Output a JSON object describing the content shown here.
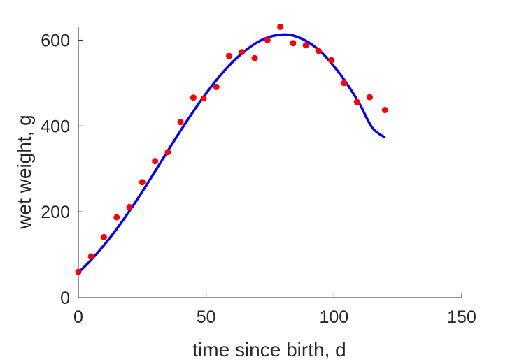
{
  "chart_data": {
    "type": "scatter",
    "xlabel": "time since birth, d",
    "ylabel": "wet weight, g",
    "xlim": [
      0,
      150
    ],
    "ylim": [
      0,
      630
    ],
    "xticks": [
      0,
      50,
      100,
      150
    ],
    "yticks": [
      0,
      200,
      400,
      600
    ],
    "grid": false,
    "colors": {
      "points": "#ff0000",
      "curve": "#0000ff",
      "axes": "#262626"
    },
    "series": [
      {
        "kind": "points",
        "x": [
          0,
          5,
          10,
          15,
          20,
          25,
          30,
          35,
          40,
          45,
          49,
          54,
          59,
          64,
          69,
          74,
          79,
          84,
          89,
          94,
          99,
          104,
          109,
          114,
          120
        ],
        "y": [
          60,
          96,
          141,
          187,
          211,
          269,
          318,
          339,
          409,
          466,
          464,
          491,
          563,
          572,
          558,
          600,
          631,
          593,
          588,
          575,
          553,
          500,
          456,
          467,
          437
        ]
      },
      {
        "kind": "fit-curve",
        "x": [
          0,
          5,
          10,
          15,
          20,
          25,
          30,
          35,
          40,
          45,
          50,
          55,
          60,
          65,
          70,
          75,
          80,
          85,
          90,
          95,
          100,
          105,
          110,
          115,
          120
        ],
        "y": [
          58,
          88,
          122,
          160,
          202,
          247,
          294,
          342,
          389,
          434,
          476,
          514,
          547,
          574,
          595,
          608,
          613,
          609,
          595,
          572,
          539,
          499,
          452,
          396,
          373
        ]
      }
    ]
  }
}
